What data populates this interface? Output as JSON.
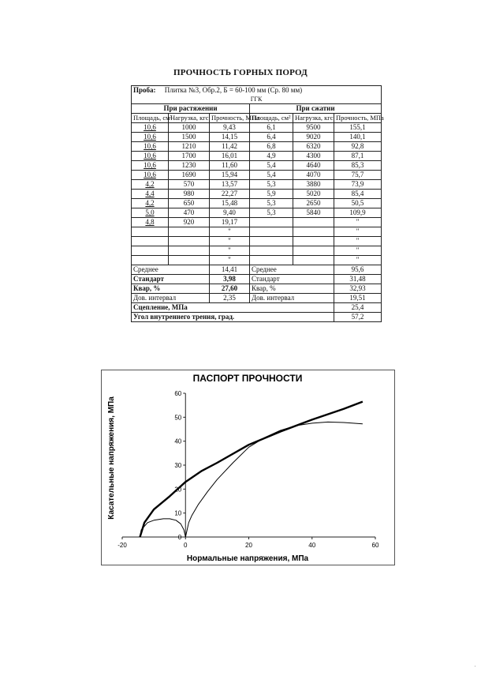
{
  "document": {
    "title": "ПРОЧНОСТЬ ГОРНЫХ ПОРОД"
  },
  "sample": {
    "label": "Проба:",
    "value": "Плитка №3, Обр.2, Б = 60-100 мм (Ср. 80 мм)",
    "code": "ГГК"
  },
  "tension": {
    "header": "При растяжении",
    "columns": [
      "Площадь, см²",
      "Нагрузка, кгс",
      "Прочность, МПа"
    ],
    "rows": [
      [
        "10,6",
        "1000",
        "9,43"
      ],
      [
        "10,6",
        "1500",
        "14,15"
      ],
      [
        "10,6",
        "1210",
        "11,42"
      ],
      [
        "10,6",
        "1700",
        "16,01"
      ],
      [
        "10,6",
        "1230",
        "11,60"
      ],
      [
        "10,6",
        "1690",
        "15,94"
      ],
      [
        "4,2",
        "570",
        "13,57"
      ],
      [
        "4,4",
        "980",
        "22,27"
      ],
      [
        "4,2",
        "650",
        "15,48"
      ],
      [
        "5,0",
        "470",
        "9,40"
      ],
      [
        "4,8",
        "920",
        "19,17"
      ],
      [
        "",
        "",
        "\""
      ],
      [
        "",
        "",
        "\""
      ],
      [
        "",
        "",
        "\""
      ],
      [
        "",
        "",
        "\""
      ]
    ]
  },
  "compression": {
    "header": "При сжатии",
    "columns": [
      "Площадь, см²",
      "Нагрузка, кгс",
      "Прочность, МПа"
    ],
    "rows": [
      [
        "6,1",
        "9500",
        "155,1"
      ],
      [
        "6,4",
        "9020",
        "140,1"
      ],
      [
        "6,8",
        "6320",
        "92,8"
      ],
      [
        "4,9",
        "4300",
        "87,1"
      ],
      [
        "5,4",
        "4640",
        "85,3"
      ],
      [
        "5,4",
        "4070",
        "75,7"
      ],
      [
        "5,3",
        "3880",
        "73,9"
      ],
      [
        "5,9",
        "5020",
        "85,4"
      ],
      [
        "5,3",
        "2650",
        "50,5"
      ],
      [
        "5,3",
        "5840",
        "109,9"
      ],
      [
        "",
        "",
        "\""
      ],
      [
        "",
        "",
        "\""
      ],
      [
        "",
        "",
        "\""
      ],
      [
        "",
        "",
        "\""
      ],
      [
        "",
        "",
        "\""
      ]
    ]
  },
  "summary": [
    {
      "t_label": "Среднее",
      "t_value": "14,41",
      "c_label": "Среднее",
      "c_value": "95,6"
    },
    {
      "t_label": "Стандарт",
      "t_value": "3,98",
      "c_label": "Стандарт",
      "c_value": "31,48"
    },
    {
      "t_label": "Квар, %",
      "t_value": "27,60",
      "c_label": "Квар, %",
      "c_value": "32,93"
    },
    {
      "t_label": "Дов. интервал",
      "t_value": "2,35",
      "c_label": "Дов. интервал",
      "c_value": "19,51"
    }
  ],
  "derived": [
    {
      "label": "Сцепление, МПа",
      "value": "25,4"
    },
    {
      "label": "Угол внутреннего трения, град.",
      "value": "57,2"
    }
  ],
  "chart_data": {
    "type": "line",
    "title": "ПАСПОРТ ПРОЧНОСТИ",
    "xlabel": "Нормальные напряжения, МПа",
    "ylabel": "Касательные напряжения, МПа",
    "xlim": [
      -20,
      60
    ],
    "ylim": [
      0,
      60
    ],
    "xticks": [
      "-20",
      "0",
      "20",
      "40",
      "60"
    ],
    "yticks": [
      "0",
      "10",
      "20",
      "30",
      "40",
      "50",
      "60"
    ],
    "grid": false,
    "series": [
      {
        "style": "thick",
        "x": [
          -14.4,
          -13,
          -10,
          -5,
          0,
          5,
          10,
          20,
          30,
          40,
          50,
          56
        ],
        "y": [
          0,
          6,
          11.5,
          17,
          23,
          27.5,
          31,
          38.5,
          44,
          49,
          53.5,
          56.5
        ]
      },
      {
        "style": "thin",
        "x": [
          0,
          1,
          2,
          4,
          7,
          10,
          15,
          20,
          25,
          30,
          35,
          40,
          45,
          50,
          56
        ],
        "y": [
          0,
          6,
          9,
          13.5,
          19,
          24,
          31,
          37.5,
          41.5,
          44.5,
          46.5,
          47.5,
          48,
          47.8,
          47.2
        ]
      },
      {
        "style": "thin",
        "x": [
          -14.4,
          -14,
          -12,
          -10,
          -7,
          -5,
          -3,
          -1.5,
          -0.5,
          0
        ],
        "y": [
          0,
          3,
          6,
          7,
          7.6,
          7.6,
          7,
          5.5,
          3,
          0
        ]
      }
    ]
  }
}
